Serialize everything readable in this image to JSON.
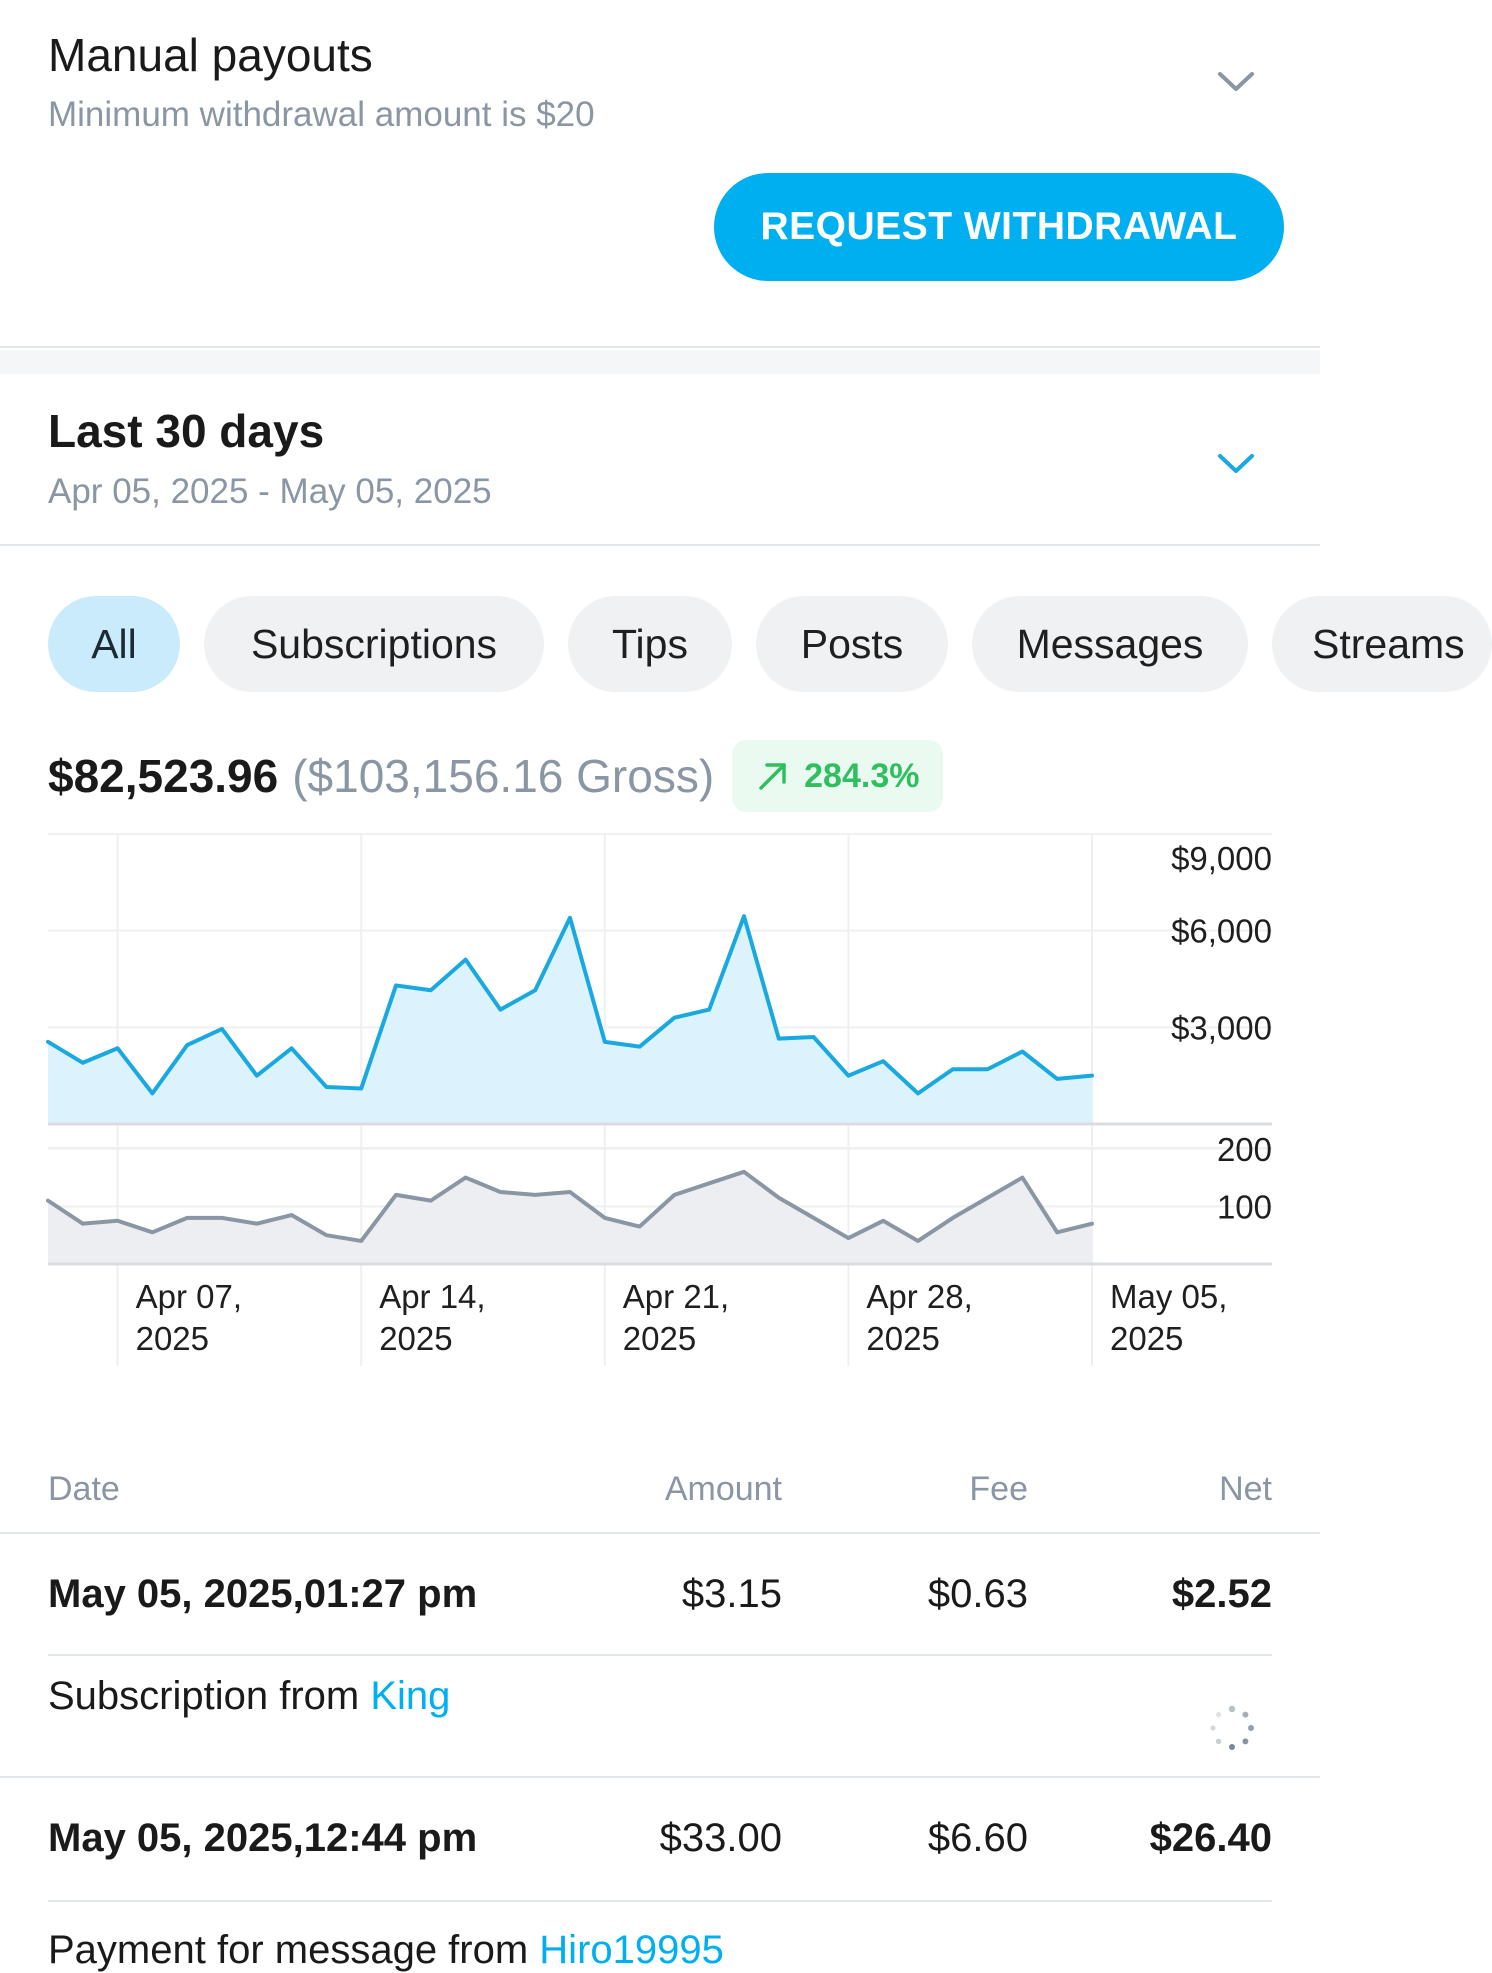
{
  "payouts": {
    "title": "Manual payouts",
    "subtitle": "Minimum withdrawal amount is $20",
    "toggle_icon": "chevron-down-icon",
    "withdraw_label": "REQUEST WITHDRAWAL",
    "accent_color": "#00aff0"
  },
  "period": {
    "title": "Last 30 days",
    "range": "Apr 05, 2025 - May 05, 2025",
    "toggle_icon": "chevron-down-icon"
  },
  "filters": [
    {
      "label": "All",
      "active": true
    },
    {
      "label": "Subscriptions",
      "active": false
    },
    {
      "label": "Tips",
      "active": false
    },
    {
      "label": "Posts",
      "active": false
    },
    {
      "label": "Messages",
      "active": false
    },
    {
      "label": "Streams",
      "active": false
    }
  ],
  "totals": {
    "net": "$82,523.96",
    "gross": "($103,156.16 Gross)",
    "change": "284.3%",
    "change_icon": "arrow-up-right-icon",
    "change_color": "#2fbf5f"
  },
  "chart_data": [
    {
      "type": "area",
      "color": "#1aa8e0",
      "fill": "#dcf3fd",
      "y_ticks": [
        "$9,000",
        "$6,000",
        "$3,000"
      ],
      "ylim": [
        0,
        9000
      ],
      "grid": true,
      "x": [
        "Apr 05",
        "Apr 06",
        "Apr 07",
        "Apr 08",
        "Apr 09",
        "Apr 10",
        "Apr 11",
        "Apr 12",
        "Apr 13",
        "Apr 14",
        "Apr 15",
        "Apr 16",
        "Apr 17",
        "Apr 18",
        "Apr 19",
        "Apr 20",
        "Apr 21",
        "Apr 22",
        "Apr 23",
        "Apr 24",
        "Apr 25",
        "Apr 26",
        "Apr 27",
        "Apr 28",
        "Apr 29",
        "Apr 30",
        "May 01",
        "May 02",
        "May 03",
        "May 04",
        "May 05"
      ],
      "values": [
        2550,
        1900,
        2350,
        950,
        2450,
        2950,
        1500,
        2350,
        1150,
        1100,
        4300,
        4150,
        5100,
        3550,
        4150,
        6400,
        2550,
        2400,
        3300,
        3550,
        6450,
        2650,
        2700,
        1500,
        1950,
        950,
        1700,
        1700,
        2250,
        1400,
        1500
      ]
    },
    {
      "type": "area",
      "color": "#8a96a3",
      "fill": "#eceef1",
      "y_ticks": [
        "200",
        "100"
      ],
      "ylim": [
        0,
        200
      ],
      "grid": true,
      "x": [
        "Apr 05",
        "Apr 06",
        "Apr 07",
        "Apr 08",
        "Apr 09",
        "Apr 10",
        "Apr 11",
        "Apr 12",
        "Apr 13",
        "Apr 14",
        "Apr 15",
        "Apr 16",
        "Apr 17",
        "Apr 18",
        "Apr 19",
        "Apr 20",
        "Apr 21",
        "Apr 22",
        "Apr 23",
        "Apr 24",
        "Apr 25",
        "Apr 26",
        "Apr 27",
        "Apr 28",
        "Apr 29",
        "Apr 30",
        "May 01",
        "May 02",
        "May 03",
        "May 04",
        "May 05"
      ],
      "values": [
        110,
        70,
        75,
        55,
        80,
        80,
        70,
        85,
        50,
        40,
        120,
        110,
        150,
        125,
        120,
        125,
        80,
        65,
        120,
        140,
        160,
        115,
        80,
        45,
        75,
        40,
        80,
        115,
        150,
        55,
        70
      ],
      "x_ticks": [
        {
          "line1": "Apr 07,",
          "line2": "2025",
          "index": 2
        },
        {
          "line1": "Apr 14,",
          "line2": "2025",
          "index": 9
        },
        {
          "line1": "Apr 21,",
          "line2": "2025",
          "index": 16
        },
        {
          "line1": "Apr 28,",
          "line2": "2025",
          "index": 23
        },
        {
          "line1": "May 05,",
          "line2": "2025",
          "index": 30
        }
      ]
    }
  ],
  "table": {
    "headers": {
      "date": "Date",
      "amount": "Amount",
      "fee": "Fee",
      "net": "Net"
    },
    "rows": [
      {
        "date": "May 05, 2025,01:27 pm",
        "amount": "$3.15",
        "fee": "$0.63",
        "net": "$2.52",
        "desc_prefix": "Subscription from ",
        "desc_link": "King",
        "status_icon": "loading-spinner-icon"
      },
      {
        "date": "May 05, 2025,12:44 pm",
        "amount": "$33.00",
        "fee": "$6.60",
        "net": "$26.40",
        "desc_prefix": "Payment for message from ",
        "desc_link": "Hiro19995"
      }
    ]
  }
}
